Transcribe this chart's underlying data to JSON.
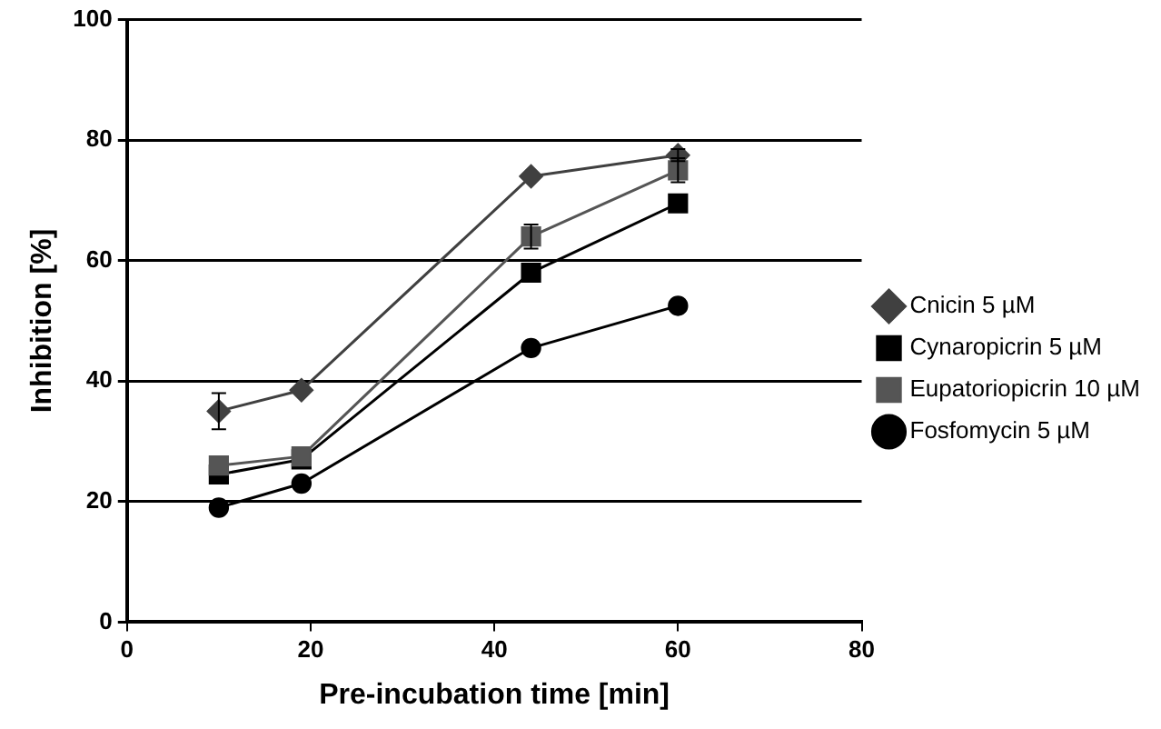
{
  "chart_data": {
    "type": "line",
    "xlabel": "Pre-incubation time [min]",
    "ylabel": "Inhibition [%]",
    "xlim": [
      0,
      80
    ],
    "xticks": [
      0,
      20,
      40,
      60,
      80
    ],
    "ylim": [
      0,
      100
    ],
    "yticks": [
      0,
      20,
      40,
      60,
      80,
      100
    ],
    "grid": "y",
    "legend": "right",
    "line_style": "solid",
    "series": [
      {
        "name": "Cnicin 5 µM",
        "color": "#404040",
        "marker": "diamond",
        "x": [
          10,
          19,
          44,
          60
        ],
        "values": [
          35,
          38.5,
          74,
          77.5
        ],
        "errors": [
          3,
          null,
          null,
          1
        ]
      },
      {
        "name": "Cynaropicrin 5 µM",
        "color": "#000000",
        "marker": "square",
        "x": [
          10,
          19,
          44,
          60
        ],
        "values": [
          24.5,
          27,
          58,
          69.5
        ],
        "errors": [
          null,
          null,
          null,
          null
        ]
      },
      {
        "name": "Eupatoriopicrin 10 µM",
        "color": "#555555",
        "marker": "square",
        "x": [
          10,
          19,
          44,
          60
        ],
        "values": [
          26,
          27.5,
          64,
          75
        ],
        "errors": [
          null,
          null,
          2,
          2
        ]
      },
      {
        "name": "Fosfomycin 5 µM",
        "color": "#000000",
        "marker": "circle",
        "x": [
          10,
          19,
          44,
          60
        ],
        "values": [
          19,
          23,
          45.5,
          52.5
        ],
        "errors": [
          null,
          null,
          1,
          1
        ]
      }
    ]
  }
}
